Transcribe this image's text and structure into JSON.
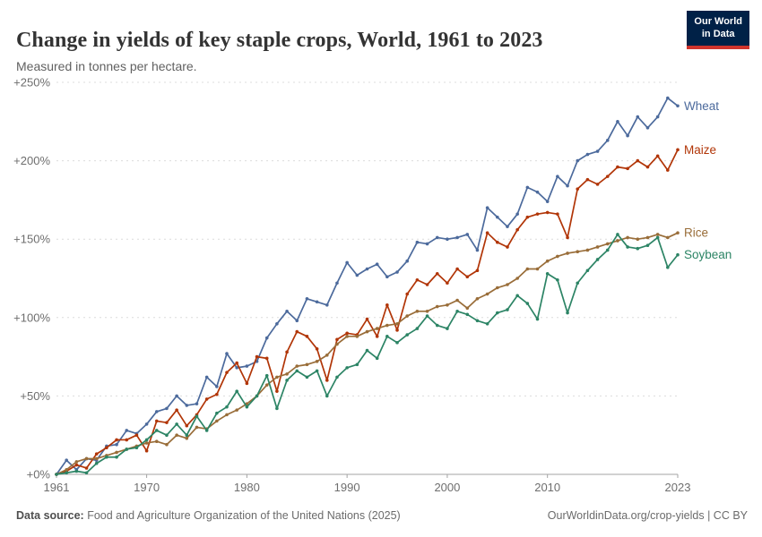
{
  "header": {
    "title": "Change in yields of key staple crops, World, 1961 to 2023",
    "subtitle": "Measured in tonnes per hectare.",
    "logo": {
      "line1": "Our World",
      "line2": "in Data",
      "bg_color": "#002147",
      "stripe_color": "#D0342C"
    }
  },
  "footer": {
    "source_label": "Data source:",
    "source_text": " Food and Agriculture Organization of the United Nations (2025)",
    "link_text": "OurWorldinData.org/crop-yields | CC BY"
  },
  "chart_data": {
    "type": "line",
    "title": "Change in yields of key staple crops, World, 1961 to 2023",
    "unit": "percent change from 1961",
    "grid": "horizontal dashed",
    "legend_position": "line-end-labels",
    "ylim": [
      0,
      250
    ],
    "yticks": [
      {
        "v": 0,
        "label": "+0%"
      },
      {
        "v": 50,
        "label": "+50%"
      },
      {
        "v": 100,
        "label": "+100%"
      },
      {
        "v": 150,
        "label": "+150%"
      },
      {
        "v": 200,
        "label": "+200%"
      },
      {
        "v": 250,
        "label": "+250%"
      }
    ],
    "xticks": [
      {
        "v": 1961,
        "label": "1961"
      },
      {
        "v": 1970,
        "label": "1970"
      },
      {
        "v": 1980,
        "label": "1980"
      },
      {
        "v": 1990,
        "label": "1990"
      },
      {
        "v": 2000,
        "label": "2000"
      },
      {
        "v": 2010,
        "label": "2010"
      },
      {
        "v": 2023,
        "label": "2023"
      }
    ],
    "x": [
      1961,
      1962,
      1963,
      1964,
      1965,
      1966,
      1967,
      1968,
      1969,
      1970,
      1971,
      1972,
      1973,
      1974,
      1975,
      1976,
      1977,
      1978,
      1979,
      1980,
      1981,
      1982,
      1983,
      1984,
      1985,
      1986,
      1987,
      1988,
      1989,
      1990,
      1991,
      1992,
      1993,
      1994,
      1995,
      1996,
      1997,
      1998,
      1999,
      2000,
      2001,
      2002,
      2003,
      2004,
      2005,
      2006,
      2007,
      2008,
      2009,
      2010,
      2011,
      2012,
      2013,
      2014,
      2015,
      2016,
      2017,
      2018,
      2019,
      2020,
      2021,
      2022,
      2023
    ],
    "series": [
      {
        "name": "Wheat",
        "color": "#4C6A9C",
        "values": [
          0,
          9,
          3,
          10,
          9,
          18,
          19,
          28,
          26,
          32,
          40,
          42,
          50,
          44,
          45,
          62,
          56,
          77,
          68,
          69,
          72,
          87,
          96,
          104,
          98,
          112,
          110,
          108,
          122,
          135,
          127,
          131,
          134,
          126,
          129,
          136,
          148,
          147,
          151,
          150,
          151,
          153,
          143,
          170,
          164,
          158,
          166,
          183,
          180,
          174,
          190,
          184,
          200,
          204,
          206,
          213,
          225,
          216,
          228,
          221,
          228,
          240,
          235
        ]
      },
      {
        "name": "Maize",
        "color": "#B13507",
        "values": [
          0,
          2,
          6,
          4,
          13,
          17,
          22,
          22,
          25,
          15,
          34,
          33,
          41,
          31,
          38,
          48,
          51,
          65,
          71,
          58,
          75,
          74,
          53,
          78,
          91,
          88,
          80,
          60,
          86,
          90,
          89,
          99,
          88,
          108,
          92,
          115,
          124,
          121,
          128,
          122,
          131,
          126,
          130,
          154,
          148,
          145,
          156,
          164,
          166,
          167,
          166,
          151,
          182,
          188,
          185,
          190,
          196,
          195,
          200,
          196,
          203,
          194,
          207
        ]
      },
      {
        "name": "Rice",
        "color": "#996D39",
        "values": [
          0,
          3,
          8,
          10,
          10,
          12,
          14,
          16,
          18,
          20,
          21,
          19,
          25,
          23,
          30,
          29,
          34,
          38,
          41,
          45,
          50,
          57,
          62,
          64,
          69,
          70,
          72,
          76,
          83,
          88,
          88,
          91,
          93,
          95,
          96,
          101,
          104,
          104,
          107,
          108,
          111,
          106,
          112,
          115,
          119,
          121,
          125,
          131,
          131,
          136,
          139,
          141,
          142,
          143,
          145,
          147,
          149,
          151,
          150,
          151,
          153,
          151,
          154
        ]
      },
      {
        "name": "Soybean",
        "color": "#2C8465",
        "values": [
          0,
          1,
          2,
          1,
          7,
          11,
          11,
          16,
          17,
          22,
          28,
          25,
          32,
          25,
          37,
          28,
          39,
          43,
          53,
          43,
          50,
          63,
          42,
          60,
          66,
          62,
          66,
          50,
          62,
          68,
          70,
          79,
          74,
          88,
          84,
          89,
          93,
          101,
          95,
          93,
          104,
          102,
          98,
          96,
          103,
          105,
          114,
          109,
          99,
          128,
          124,
          103,
          122,
          130,
          137,
          143,
          153,
          145,
          144,
          146,
          151,
          132,
          140
        ]
      }
    ]
  }
}
